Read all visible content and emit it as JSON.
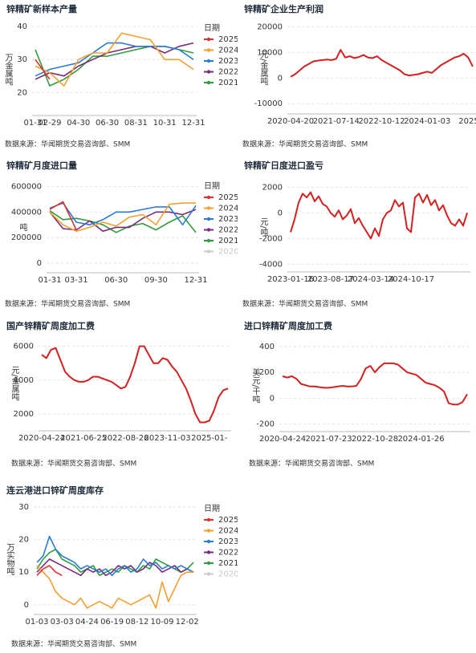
{
  "chart_data": [
    {
      "type": "line",
      "title": "锌精矿新样本产量",
      "ylabel": "万金属吨",
      "legend_title": "日期",
      "source": "数据来源：华闻期货交易咨询部、SMM",
      "grid": true,
      "categories": [
        "01-31",
        "02-29",
        null,
        "04-30",
        null,
        "06-30",
        null,
        "08-31",
        null,
        "10-31",
        null,
        "12-31"
      ],
      "ylim": [
        13,
        41
      ],
      "yticks": [
        20,
        30,
        40
      ],
      "series": [
        {
          "name": "2025",
          "color": "#e0302f",
          "values": [
            30,
            24,
            null,
            null,
            null,
            null,
            null,
            null,
            null,
            null,
            null,
            null
          ]
        },
        {
          "name": "2024",
          "color": "#f5a030",
          "values": [
            28,
            26,
            22,
            30,
            32,
            32,
            38,
            37,
            36,
            30,
            30,
            27
          ]
        },
        {
          "name": "2023",
          "color": "#2a7bd4",
          "values": [
            25,
            27,
            28,
            29,
            32,
            35,
            35,
            34,
            34,
            34,
            33,
            30
          ]
        },
        {
          "name": "2022",
          "color": "#7b2a7b",
          "values": [
            24,
            26,
            25,
            28,
            30,
            32,
            33,
            34,
            34,
            32,
            34,
            35
          ]
        },
        {
          "name": "2021",
          "color": "#2f9e3a",
          "values": [
            33,
            22,
            24,
            27,
            31,
            31,
            32,
            33,
            34,
            34,
            33,
            32
          ]
        }
      ]
    },
    {
      "type": "line",
      "title": "锌精矿企业生产利润",
      "ylabel": "元/金属吨",
      "source": "数据来源：华闻期货交易咨询部、SMM",
      "grid": true,
      "color": "#d62020",
      "categories": [
        "2020-04-20",
        null,
        null,
        null,
        null,
        null,
        null,
        null,
        null,
        null,
        "2021-07-14",
        null,
        null,
        null,
        null,
        null,
        null,
        null,
        null,
        null,
        "2022-10-12",
        null,
        null,
        null,
        null,
        null,
        null,
        null,
        null,
        null,
        "2024-01-03",
        null,
        null,
        null,
        null,
        null,
        null,
        null,
        null,
        null,
        "2025-0"
      ],
      "values": [
        500,
        1500,
        3000,
        4500,
        5500,
        6500,
        6800,
        7000,
        7200,
        7000,
        7500,
        11000,
        8000,
        8500,
        7800,
        8200,
        9000,
        8000,
        7800,
        8500,
        7000,
        6000,
        5000,
        4000,
        3000,
        1500,
        1000,
        1200,
        1500,
        2000,
        2500,
        2000,
        3500,
        5000,
        6000,
        7000,
        8000,
        8500,
        9500,
        8000,
        4500
      ],
      "ylim": [
        -14000,
        22000
      ],
      "yticks": [
        -10000,
        0,
        10000,
        20000
      ]
    },
    {
      "type": "line",
      "title": "锌精矿月度进口量",
      "ylabel": "吨",
      "legend_title": "日期",
      "source": "数据来源：华闻期货交易咨询部、SMM",
      "grid": true,
      "categories": [
        "01-31",
        null,
        "03-31",
        null,
        null,
        "06-30",
        null,
        null,
        "09-30",
        null,
        null,
        "12-31"
      ],
      "ylim": [
        -75000,
        640000
      ],
      "yticks": [
        0,
        200000,
        400000,
        600000
      ],
      "series": [
        {
          "name": "2025",
          "color": "#e0302f",
          "values": [
            420000,
            480000,
            260000,
            null,
            null,
            null,
            null,
            null,
            null,
            null,
            null,
            null
          ]
        },
        {
          "name": "2024",
          "color": "#f5a030",
          "values": [
            400000,
            300000,
            250000,
            280000,
            320000,
            290000,
            360000,
            380000,
            300000,
            460000,
            470000,
            470000
          ]
        },
        {
          "name": "2023",
          "color": "#2a7bd4",
          "values": [
            430000,
            470000,
            320000,
            300000,
            340000,
            400000,
            400000,
            420000,
            440000,
            440000,
            300000,
            450000
          ]
        },
        {
          "name": "2022",
          "color": "#7b2a7b",
          "values": [
            400000,
            270000,
            260000,
            330000,
            250000,
            280000,
            280000,
            350000,
            400000,
            400000,
            380000,
            420000
          ]
        },
        {
          "name": "2021",
          "color": "#2f9e3a",
          "values": [
            410000,
            340000,
            350000,
            330000,
            300000,
            240000,
            290000,
            310000,
            260000,
            320000,
            370000,
            240000
          ]
        },
        {
          "name": "2020",
          "color": "#c8c8c8",
          "visible": false
        }
      ]
    },
    {
      "type": "line",
      "title": "锌精矿日度进口盈亏",
      "ylabel": "元/吨",
      "source": "数据来源：华闻期货交易咨询部、SMM",
      "grid": true,
      "color": "#d62020",
      "categories": [
        "2023-01-16",
        null,
        null,
        null,
        null,
        null,
        null,
        null,
        null,
        null,
        "2023-08-17",
        null,
        null,
        null,
        null,
        null,
        null,
        null,
        null,
        null,
        "2024-03-14",
        null,
        null,
        null,
        null,
        null,
        null,
        null,
        null,
        null,
        "2024-10-17",
        null,
        null,
        null,
        null,
        null,
        null,
        null,
        null,
        null,
        null,
        null,
        null,
        null,
        null
      ],
      "values": [
        -1500,
        -500,
        800,
        1500,
        1200,
        1600,
        900,
        1300,
        700,
        500,
        0,
        -300,
        200,
        -500,
        -200,
        300,
        -800,
        -400,
        -1000,
        -1500,
        -2000,
        -1200,
        -1800,
        -500,
        0,
        200,
        1000,
        500,
        800,
        -1200,
        -1500,
        1200,
        1500,
        800,
        1400,
        600,
        1000,
        200,
        600,
        -200,
        -800,
        -1000,
        -500,
        -1000,
        0
      ],
      "ylim": [
        -4600,
        2400
      ],
      "yticks": [
        -4000,
        -2000,
        0,
        2000
      ]
    },
    {
      "type": "line",
      "title": "国产锌精矿周度加工费",
      "ylabel": "元/金属吨",
      "source": "数据来源：华闻期货交易咨询部、SMM",
      "grid": true,
      "color": "#d62020",
      "categories": [
        "2020-04-24",
        null,
        null,
        null,
        null,
        null,
        null,
        null,
        null,
        "2021-06-25",
        null,
        null,
        null,
        null,
        null,
        null,
        null,
        null,
        "2022-08-26",
        null,
        null,
        null,
        null,
        null,
        null,
        null,
        null,
        "2023-11-03",
        null,
        null,
        null,
        null,
        null,
        null,
        null,
        null,
        "2025-01-",
        null,
        null,
        null,
        null
      ],
      "values": [
        5500,
        5300,
        5800,
        5900,
        5200,
        4500,
        4200,
        4000,
        3900,
        3900,
        4000,
        4200,
        4200,
        4100,
        4000,
        3900,
        3700,
        3500,
        3600,
        4200,
        5000,
        6000,
        6000,
        5500,
        5000,
        5000,
        5300,
        5200,
        4800,
        4500,
        4000,
        3500,
        2800,
        2000,
        1500,
        1500,
        1600,
        2200,
        3000,
        3400,
        3500
      ],
      "ylim": [
        1000,
        6600
      ],
      "yticks": [
        2000,
        4000,
        6000
      ]
    },
    {
      "type": "line",
      "title": "进口锌精矿周度加工费",
      "ylabel": "美元/干吨",
      "source": "数据来源：华闻期货交易咨询部、SMM",
      "grid": true,
      "color": "#d62020",
      "categories": [
        "2020-04-24",
        null,
        null,
        null,
        null,
        null,
        null,
        null,
        null,
        null,
        "2021-07-23",
        null,
        null,
        null,
        null,
        null,
        null,
        null,
        null,
        null,
        "2022-10-28",
        null,
        null,
        null,
        null,
        null,
        null,
        null,
        null,
        null,
        "2024-01-26",
        null,
        null,
        null,
        null,
        null,
        null,
        null,
        null,
        null,
        null
      ],
      "values": [
        170,
        160,
        170,
        150,
        110,
        100,
        90,
        90,
        85,
        80,
        80,
        85,
        90,
        95,
        90,
        90,
        95,
        150,
        230,
        250,
        200,
        240,
        270,
        270,
        270,
        260,
        230,
        200,
        190,
        180,
        150,
        120,
        110,
        100,
        80,
        50,
        -40,
        -50,
        -50,
        -30,
        30
      ],
      "ylim": [
        -260,
        450
      ],
      "yticks": [
        -200,
        0,
        200,
        400
      ]
    },
    {
      "type": "line",
      "title": "连云港进口锌矿周度库存",
      "ylabel": "万实物吨",
      "legend_title": "日期",
      "source": "数据来源：华闻期货交易咨询部、SMM",
      "grid": true,
      "categories": [
        "01-03",
        null,
        null,
        null,
        "03-03",
        null,
        null,
        null,
        "04-24",
        null,
        null,
        null,
        "06-19",
        null,
        null,
        null,
        "08-12",
        null,
        null,
        null,
        "10-09",
        null,
        null,
        null,
        "12-02",
        null
      ],
      "ylim": [
        -3,
        31
      ],
      "yticks": [
        0,
        10,
        20,
        30
      ],
      "series": [
        {
          "name": "2025",
          "color": "#e0302f",
          "values": [
            9,
            11,
            12,
            10,
            9,
            null,
            null,
            null,
            null,
            null,
            null,
            null,
            null,
            null,
            null,
            null,
            null,
            null,
            null,
            null,
            null,
            null,
            null,
            null,
            null,
            null
          ]
        },
        {
          "name": "2024",
          "color": "#f5a030",
          "values": [
            12,
            10,
            8,
            4,
            2,
            1,
            0,
            2,
            -1,
            0,
            1,
            0,
            -1,
            2,
            1,
            0,
            1,
            2,
            3,
            -1,
            7,
            1,
            5,
            9,
            10,
            10
          ]
        },
        {
          "name": "2023",
          "color": "#2a7bd4",
          "values": [
            13,
            15,
            21,
            17,
            15,
            14,
            13,
            11,
            12,
            11,
            10,
            11,
            9,
            11,
            12,
            10,
            11,
            14,
            12,
            13,
            11,
            12,
            11,
            12,
            11,
            10
          ]
        },
        {
          "name": "2022",
          "color": "#7b2a7b",
          "values": [
            10,
            12,
            14,
            13,
            12,
            11,
            10,
            9,
            11,
            10,
            11,
            9,
            10,
            12,
            11,
            12,
            10,
            11,
            13,
            12,
            10,
            11,
            12,
            10,
            11,
            10
          ]
        },
        {
          "name": "2021",
          "color": "#2f9e3a",
          "values": [
            11,
            14,
            16,
            17,
            14,
            13,
            12,
            10,
            11,
            12,
            9,
            10,
            11,
            10,
            12,
            11,
            10,
            12,
            11,
            14,
            13,
            12,
            11,
            10,
            11,
            13
          ]
        },
        {
          "name": "2020",
          "color": "#c8c8c8",
          "visible": false
        }
      ]
    }
  ]
}
